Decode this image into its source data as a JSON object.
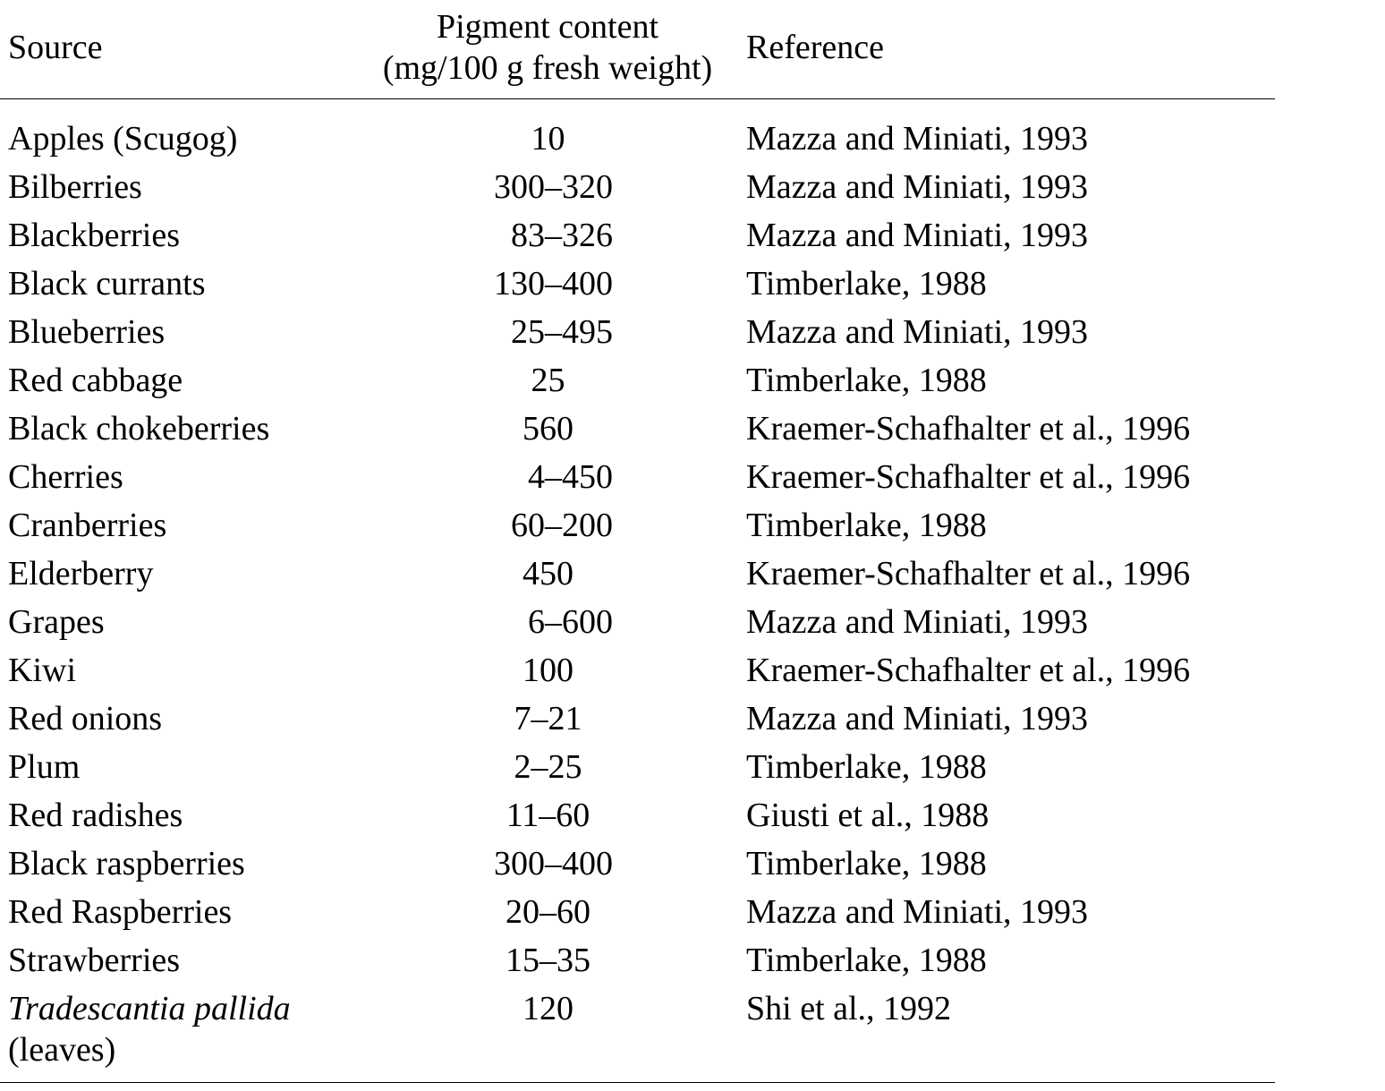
{
  "header": {
    "source": "Source",
    "pigment_line1": "Pigment content",
    "pigment_line2": "(mg/100 g fresh weight)",
    "reference": "Reference"
  },
  "rows": [
    {
      "source": "Apples (Scugog)",
      "value": "10",
      "reference": "Mazza and Miniati, 1993"
    },
    {
      "source": "Bilberries",
      "value": "300–320",
      "reference": "Mazza and Miniati, 1993"
    },
    {
      "source": "Blackberries",
      "value": "83–326",
      "reference": "Mazza and Miniati, 1993"
    },
    {
      "source": "Black currants",
      "value": "130–400",
      "reference": "Timberlake, 1988"
    },
    {
      "source": "Blueberries",
      "value": "25–495",
      "reference": "Mazza and Miniati, 1993"
    },
    {
      "source": "Red cabbage",
      "value": "25",
      "reference": "Timberlake, 1988"
    },
    {
      "source": "Black chokeberries",
      "value": "560",
      "reference": "Kraemer-Schafhalter et al., 1996"
    },
    {
      "source": "Cherries",
      "value": "4–450",
      "reference": "Kraemer-Schafhalter et al., 1996"
    },
    {
      "source": "Cranberries",
      "value": "60–200",
      "reference": "Timberlake, 1988"
    },
    {
      "source": "Elderberry",
      "value": "450",
      "reference": "Kraemer-Schafhalter et al., 1996"
    },
    {
      "source": "Grapes",
      "value": "6–600",
      "reference": "Mazza and Miniati, 1993"
    },
    {
      "source": "Kiwi",
      "value": "100",
      "reference": "Kraemer-Schafhalter et al., 1996"
    },
    {
      "source": "Red onions",
      "value": "7–21",
      "reference": "Mazza and Miniati, 1993"
    },
    {
      "source": "Plum",
      "value": "2–25",
      "reference": "Timberlake, 1988"
    },
    {
      "source": "Red radishes",
      "value": "11–60",
      "reference": "Giusti et al., 1988"
    },
    {
      "source": "Black raspberries",
      "value": "300–400",
      "reference": "Timberlake, 1988"
    },
    {
      "source": "Red Raspberries",
      "value": "20–60",
      "reference": "Mazza and Miniati, 1993"
    },
    {
      "source": "Strawberries",
      "value": "15–35",
      "reference": "Timberlake, 1988"
    }
  ],
  "last_row": {
    "source_italic": "Tradescantia pallida",
    "source_line2": "(leaves)",
    "value": "120",
    "reference": "Shi et al., 1992"
  }
}
